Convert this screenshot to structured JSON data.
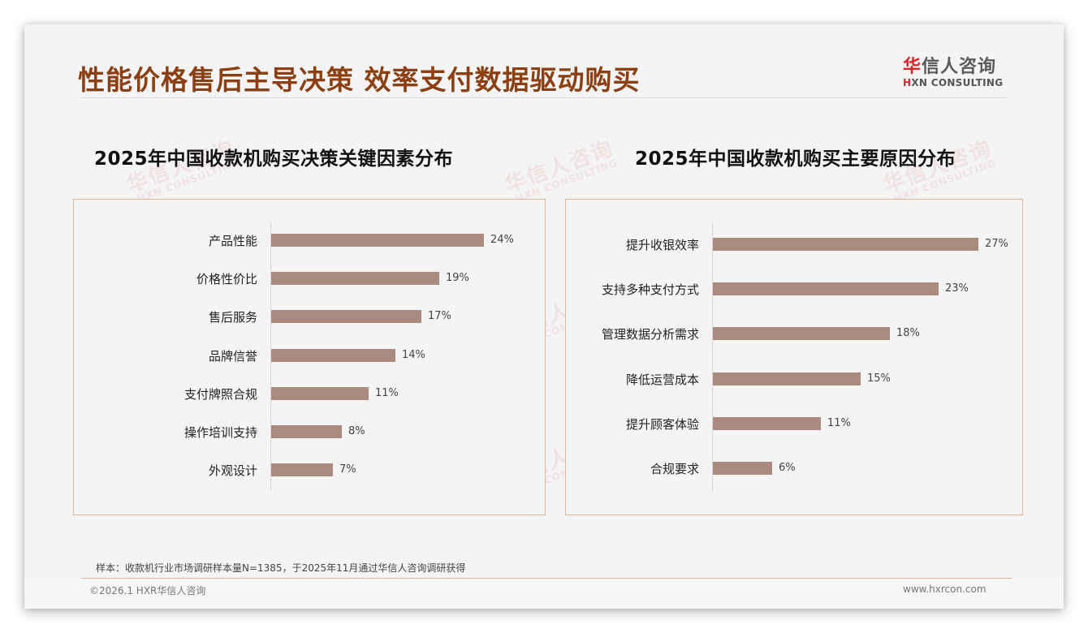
{
  "header": {
    "title": "性能价格售后主导决策 效率支付数据驱动购买",
    "logo_cn_first": "华",
    "logo_cn_rest": "信人咨询",
    "logo_en_mark": "H",
    "logo_en_rest": "XN CONSULTING"
  },
  "watermark": {
    "cn": "华信人咨询",
    "en": "HXN CONSULTING"
  },
  "left_chart": {
    "title": "2025年中国收款机购买决策关键因素分布",
    "items": [
      {
        "label": "产品性能",
        "value": "24%"
      },
      {
        "label": "价格性价比",
        "value": "19%"
      },
      {
        "label": "售后服务",
        "value": "17%"
      },
      {
        "label": "品牌信誉",
        "value": "14%"
      },
      {
        "label": "支付牌照合规",
        "value": "11%"
      },
      {
        "label": "操作培训支持",
        "value": "8%"
      },
      {
        "label": "外观设计",
        "value": "7%"
      }
    ]
  },
  "right_chart": {
    "title": "2025年中国收款机购买主要原因分布",
    "items": [
      {
        "label": "提升收银效率",
        "value": "27%"
      },
      {
        "label": "支持多种支付方式",
        "value": "23%"
      },
      {
        "label": "管理数据分析需求",
        "value": "18%"
      },
      {
        "label": "降低运营成本",
        "value": "15%"
      },
      {
        "label": "提升顾客体验",
        "value": "11%"
      },
      {
        "label": "合规要求",
        "value": "6%"
      }
    ]
  },
  "footer": {
    "note": "样本：收款机行业市场调研样本量N=1385，于2025年11月通过华信人咨询调研获得",
    "copyright": "©2026.1 HXR华信人咨询",
    "website": "www.hxrcon.com"
  },
  "colors": {
    "title": "#8b3f12",
    "bar": "#a98b80",
    "box_border": "#e2b594",
    "logo_red": "#d9262b"
  },
  "chart_data": [
    {
      "type": "bar",
      "orientation": "horizontal",
      "title": "2025年中国收款机购买决策关键因素分布",
      "categories": [
        "产品性能",
        "价格性价比",
        "售后服务",
        "品牌信誉",
        "支付牌照合规",
        "操作培训支持",
        "外观设计"
      ],
      "values": [
        24,
        19,
        17,
        14,
        11,
        8,
        7
      ],
      "unit": "%",
      "xlabel": "",
      "ylabel": "",
      "grid": false,
      "legend": "none"
    },
    {
      "type": "bar",
      "orientation": "horizontal",
      "title": "2025年中国收款机购买主要原因分布",
      "categories": [
        "提升收银效率",
        "支持多种支付方式",
        "管理数据分析需求",
        "降低运营成本",
        "提升顾客体验",
        "合规要求"
      ],
      "values": [
        27,
        23,
        18,
        15,
        11,
        6
      ],
      "unit": "%",
      "xlabel": "",
      "ylabel": "",
      "grid": false,
      "legend": "none"
    }
  ]
}
